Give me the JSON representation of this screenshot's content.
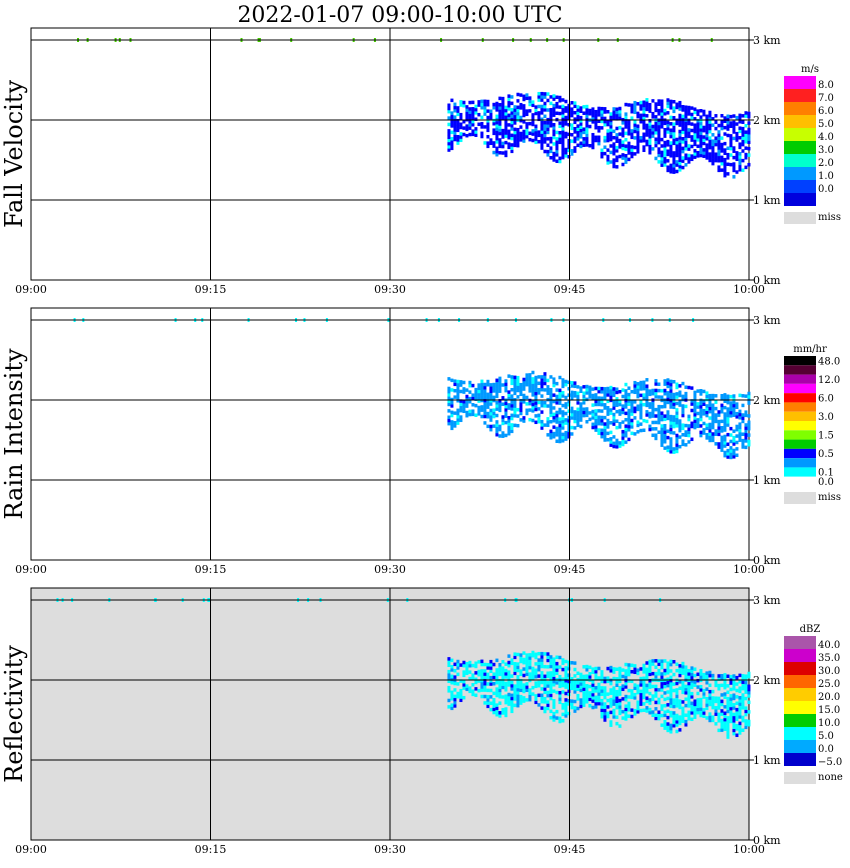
{
  "title": "2022-01-07   09:00-10:00 UTC",
  "colors": {
    "grid": "#000000",
    "missing_background": "#dddddd",
    "echo_primary": "#0000ff",
    "echo_secondary": "#0099ff",
    "echo_tertiary": "#00ffff"
  },
  "chart_data": [
    {
      "type": "heatmap",
      "ylabel": "Fall Velocity",
      "x_ticks": [
        "09:00",
        "09:15",
        "09:30",
        "09:45",
        "10:00"
      ],
      "y_ticks": [
        "0 km",
        "1 km",
        "2 km",
        "3 km"
      ],
      "ylim": [
        0,
        3.0
      ],
      "grid": true,
      "colorbar": {
        "unit": "m/s",
        "levels": [
          {
            "label": "8.0",
            "color": "#ff00ff"
          },
          {
            "label": "7.0",
            "color": "#ff2020"
          },
          {
            "label": "6.0",
            "color": "#ff7f00"
          },
          {
            "label": "5.0",
            "color": "#ffbf00"
          },
          {
            "label": "4.0",
            "color": "#c8ff00"
          },
          {
            "label": "3.0",
            "color": "#00cc00"
          },
          {
            "label": "2.0",
            "color": "#00ffcc"
          },
          {
            "label": "1.0",
            "color": "#0099ff"
          },
          {
            "label": "0.0",
            "color": "#0040ff"
          },
          {
            "label": "",
            "color": "#0000dd"
          }
        ],
        "missing": {
          "label": "miss",
          "color": "#dddddd"
        }
      },
      "background": "#ffffff",
      "dominant_color": "#0000ff"
    },
    {
      "type": "heatmap",
      "ylabel": "Rain Intensity",
      "x_ticks": [
        "09:00",
        "09:15",
        "09:30",
        "09:45",
        "10:00"
      ],
      "y_ticks": [
        "0 km",
        "1 km",
        "2 km",
        "3 km"
      ],
      "ylim": [
        0,
        3.0
      ],
      "grid": true,
      "colorbar": {
        "unit": "mm/hr",
        "levels": [
          {
            "label": "48.0",
            "color": "#000000"
          },
          {
            "label": "",
            "color": "#550033"
          },
          {
            "label": "12.0",
            "color": "#aa00aa"
          },
          {
            "label": "",
            "color": "#ff00ff"
          },
          {
            "label": "6.0",
            "color": "#ff0000"
          },
          {
            "label": "",
            "color": "#ff7f00"
          },
          {
            "label": "3.0",
            "color": "#ffbf00"
          },
          {
            "label": "",
            "color": "#ffff00"
          },
          {
            "label": "1.5",
            "color": "#7fff00"
          },
          {
            "label": "",
            "color": "#00cc00"
          },
          {
            "label": "0.5",
            "color": "#0000ff"
          },
          {
            "label": "",
            "color": "#0099ff"
          },
          {
            "label": "0.1",
            "color": "#00ffff"
          },
          {
            "label": "0.0",
            "color": "#ffffff"
          }
        ],
        "missing": {
          "label": "miss",
          "color": "#dddddd"
        }
      },
      "background": "#ffffff",
      "dominant_color": "#0099ff"
    },
    {
      "type": "heatmap",
      "ylabel": "Reflectivity",
      "x_ticks": [
        "09:00",
        "09:15",
        "09:30",
        "09:45",
        "10:00"
      ],
      "y_ticks": [
        "0 km",
        "1 km",
        "2 km",
        "3 km"
      ],
      "ylim": [
        0,
        3.0
      ],
      "grid": true,
      "colorbar": {
        "unit": "dBZ",
        "levels": [
          {
            "label": "40.0",
            "color": "#aa55aa"
          },
          {
            "label": "35.0",
            "color": "#cc00cc"
          },
          {
            "label": "30.0",
            "color": "#dd0000"
          },
          {
            "label": "25.0",
            "color": "#ff6600"
          },
          {
            "label": "20.0",
            "color": "#ffcc00"
          },
          {
            "label": "15.0",
            "color": "#ffff00"
          },
          {
            "label": "10.0",
            "color": "#00cc00"
          },
          {
            "label": "5.0",
            "color": "#00ffff"
          },
          {
            "label": "0.0",
            "color": "#00aaff"
          },
          {
            "label": "−5.0",
            "color": "#0000cc"
          }
        ],
        "missing": {
          "label": "none",
          "color": "#dddddd"
        }
      },
      "background": "#dddddd",
      "dominant_color": "#00ffff"
    }
  ]
}
